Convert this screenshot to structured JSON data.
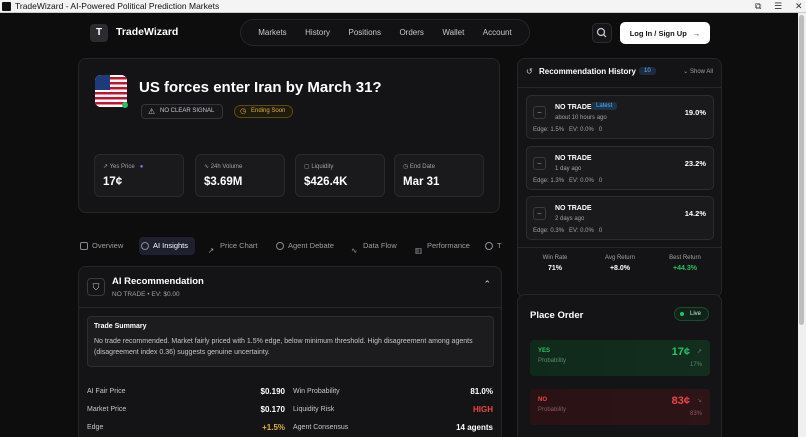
{
  "window": {
    "title": "TradeWizard - AI-Powered Political Prediction Markets"
  },
  "nav": {
    "logo_letter": "T",
    "brand": "TradeWizard",
    "links": [
      "Markets",
      "History",
      "Positions",
      "Orders",
      "Wallet",
      "Account"
    ],
    "login_label": "Log In / Sign Up",
    "login_arrow": "→"
  },
  "market": {
    "title": "US forces enter Iran by March 31?",
    "signal_badge": "NO CLEAR SIGNAL",
    "ending_badge": "Ending Soon",
    "stats": [
      {
        "label": "Yes Price",
        "value": "17¢"
      },
      {
        "label": "24h Volume",
        "value": "$3.69M"
      },
      {
        "label": "Liquidity",
        "value": "$426.4K"
      },
      {
        "label": "End Date",
        "value": "Mar 31"
      }
    ]
  },
  "tabs": [
    "Overview",
    "AI Insights",
    "Price Chart",
    "Agent Debate",
    "Data Flow",
    "Performance",
    "T"
  ],
  "recommendation": {
    "title": "AI Recommendation",
    "subtitle": "NO TRADE • EV: $0.00",
    "summary_title": "Trade Summary",
    "summary_text": "No trade recommended. Market fairly priced with 1.5% edge, below minimum threshold. High disagreement among agents (disagreement index 0.36) suggests genuine uncertainty.",
    "metrics_left": [
      {
        "label": "AI Fair Price",
        "value": "$0.190"
      },
      {
        "label": "Market Price",
        "value": "$0.170"
      },
      {
        "label": "Edge",
        "value": "+1.5%"
      }
    ],
    "metrics_right": [
      {
        "label": "Win Probability",
        "value": "81.0%"
      },
      {
        "label": "Liquidity Risk",
        "value": "HIGH"
      },
      {
        "label": "Agent Consensus",
        "value": "14 agents"
      }
    ]
  },
  "history": {
    "title": "Recommendation History",
    "count": "10",
    "show_all": "Show All",
    "items": [
      {
        "action": "NO TRADE",
        "badge": "Latest",
        "time": "about 10 hours ago",
        "pct": "19.0%",
        "edge": "Edge: 1.5%",
        "ev": "EV: 0.0%",
        "extra": "0"
      },
      {
        "action": "NO TRADE",
        "badge": "",
        "time": "1 day ago",
        "pct": "23.2%",
        "edge": "Edge: 1.3%",
        "ev": "EV: 0.0%",
        "extra": "0"
      },
      {
        "action": "NO TRADE",
        "badge": "",
        "time": "2 days ago",
        "pct": "14.2%",
        "edge": "Edge: 0.3%",
        "ev": "EV: 0.0%",
        "extra": "0"
      }
    ],
    "summary": [
      {
        "label": "Win Rate",
        "value": "71%"
      },
      {
        "label": "Avg Return",
        "value": "+8.0%"
      },
      {
        "label": "Best Return",
        "value": "+44.3%"
      }
    ]
  },
  "order": {
    "title": "Place Order",
    "live": "Live",
    "yes": {
      "label": "YES",
      "sub": "Probability",
      "price": "17¢",
      "small": "17%"
    },
    "no": {
      "label": "NO",
      "sub": "Probability",
      "price": "83¢",
      "small": "83%"
    }
  },
  "colors": {
    "accent_blue": "#4fb0ff",
    "green": "#22c55e",
    "red": "#ef4444",
    "amber": "#e0b23a"
  }
}
